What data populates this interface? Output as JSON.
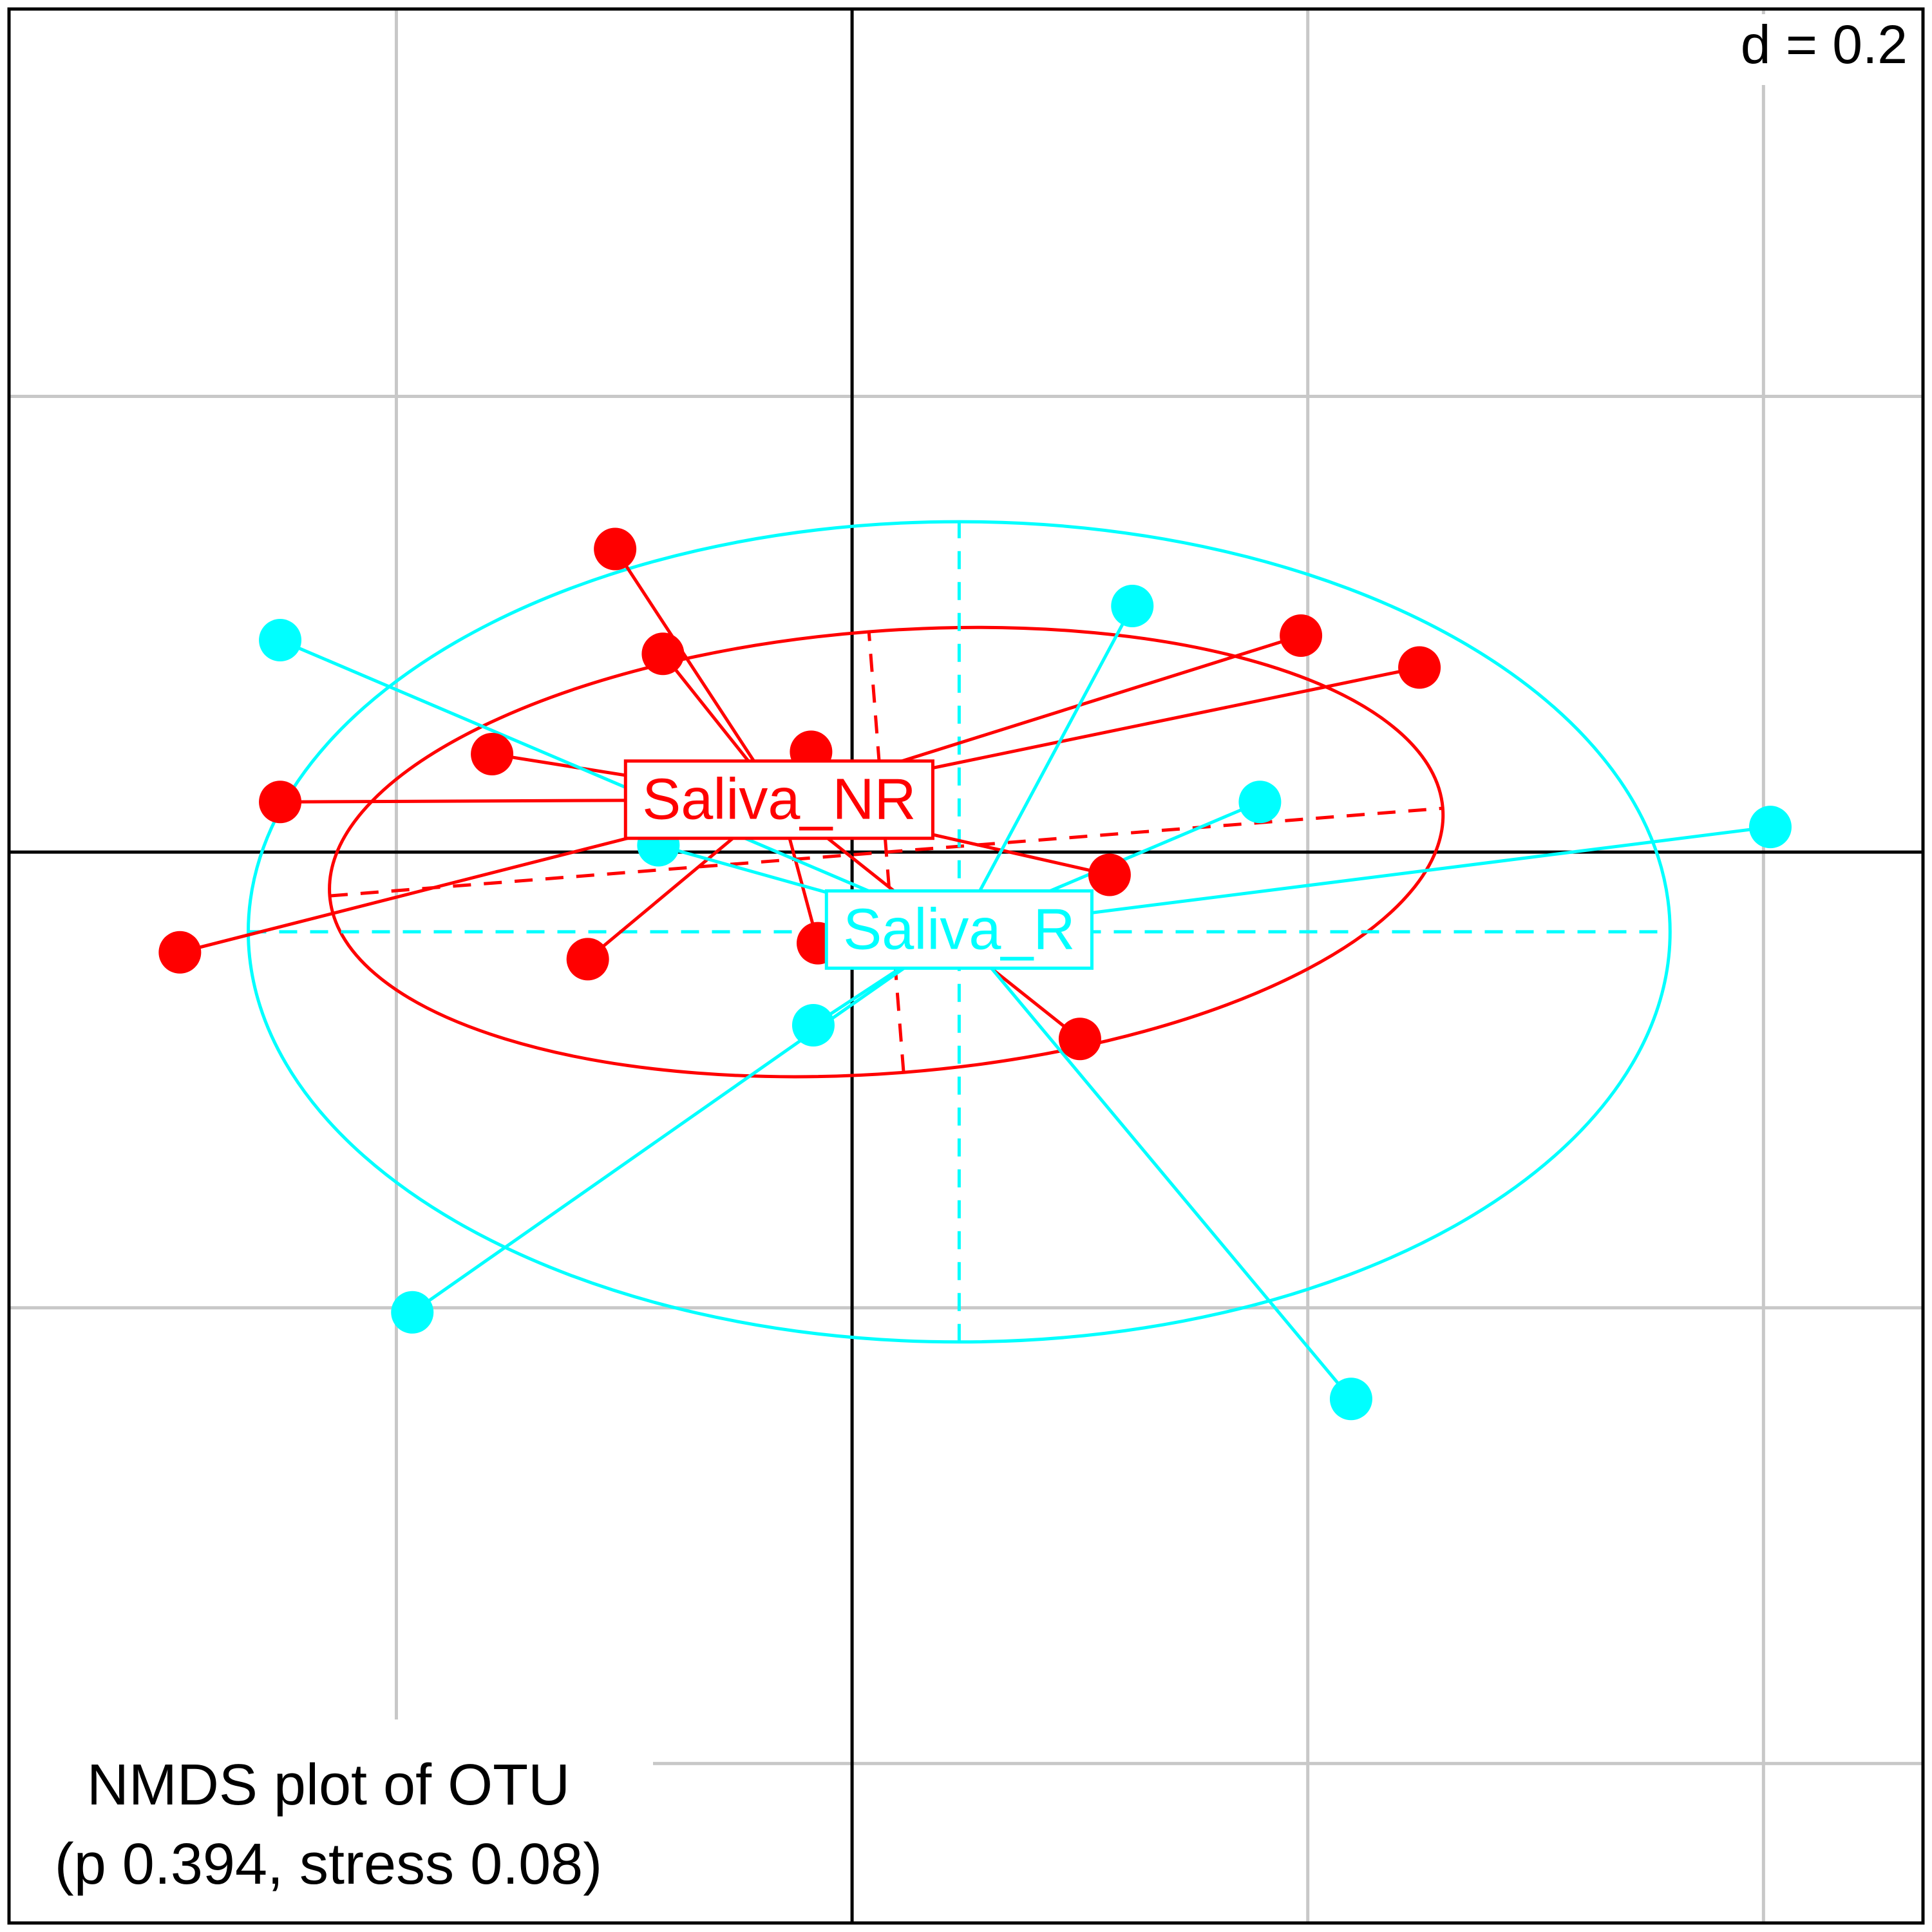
{
  "chart_data": {
    "type": "scatter",
    "grid_step": 0.2,
    "grid_label": "d = 0.2",
    "xlim": [
      -0.37,
      0.47
    ],
    "ylim": [
      -0.47,
      0.37
    ],
    "grid": true,
    "caption": [
      "NMDS plot of OTU",
      "(p 0.394, stress 0.08)"
    ],
    "groups": [
      {
        "name": "Saliva_NR",
        "color": "#ff0000",
        "centroid": [
          -0.032,
          0.023
        ],
        "ellipse": {
          "center": [
            0.015,
            0.0
          ],
          "rx": 0.245,
          "ry": 0.097,
          "angle_deg": 4.5
        },
        "points": [
          [
            -0.104,
            0.133
          ],
          [
            -0.083,
            0.087
          ],
          [
            -0.158,
            0.043
          ],
          [
            -0.251,
            0.022
          ],
          [
            -0.018,
            0.044
          ],
          [
            -0.295,
            -0.044
          ],
          [
            -0.116,
            -0.047
          ],
          [
            -0.015,
            -0.04
          ],
          [
            0.113,
            -0.01
          ],
          [
            0.197,
            0.095
          ],
          [
            0.249,
            0.081
          ],
          [
            0.1,
            -0.082
          ]
        ]
      },
      {
        "name": "Saliva_R",
        "color": "#00ffff",
        "centroid": [
          0.047,
          -0.034
        ],
        "ellipse": {
          "center": [
            0.047,
            -0.035
          ],
          "rx": 0.312,
          "ry": 0.18,
          "angle_deg": 0
        },
        "points": [
          [
            -0.251,
            0.093
          ],
          [
            0.123,
            0.108
          ],
          [
            0.179,
            0.022
          ],
          [
            0.403,
            0.011
          ],
          [
            -0.085,
            0.003
          ],
          [
            -0.017,
            -0.076
          ],
          [
            -0.193,
            -0.202
          ],
          [
            0.219,
            -0.24
          ]
        ]
      }
    ]
  }
}
